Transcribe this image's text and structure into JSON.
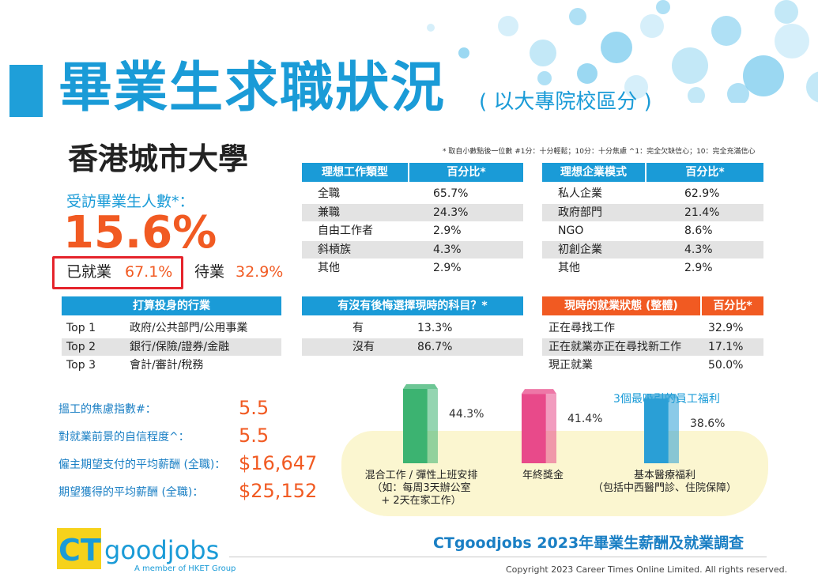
{
  "header": {
    "title": "畢業生求職狀況",
    "subtitle": "( 以大專院校區分 )",
    "footnote": "* 取自小數點後一位數   #1分：十分輕鬆；10分：十分焦慮   ^1：完全欠缺信心；10：完全充滿信心"
  },
  "university": "香港城市大學",
  "respondents": {
    "label": "受訪畢業生人數*：",
    "value": "15.6%"
  },
  "employment": {
    "employed_label": "已就業",
    "employed_value": "67.1%",
    "waiting_label": "待業",
    "waiting_value": "32.9%"
  },
  "ideal_job": {
    "header_type": "理想工作類型",
    "header_pct": "百分比*",
    "rows": [
      {
        "label": "全職",
        "value": "65.7%"
      },
      {
        "label": "兼職",
        "value": "24.3%"
      },
      {
        "label": "自由工作者",
        "value": "2.9%"
      },
      {
        "label": "斜槓族",
        "value": "4.3%"
      },
      {
        "label": "其他",
        "value": "2.9%"
      }
    ]
  },
  "ideal_company": {
    "header_type": "理想企業模式",
    "header_pct": "百分比*",
    "rows": [
      {
        "label": "私人企業",
        "value": "62.9%"
      },
      {
        "label": "政府部門",
        "value": "21.4%"
      },
      {
        "label": "NGO",
        "value": "8.6%"
      },
      {
        "label": "初創企業",
        "value": "4.3%"
      },
      {
        "label": "其他",
        "value": "2.9%"
      }
    ]
  },
  "industries": {
    "header": "打算投身的行業",
    "rows": [
      {
        "rank": "Top 1",
        "label": "政府/公共部門/公用事業"
      },
      {
        "rank": "Top 2",
        "label": "銀行/保險/證券/金融"
      },
      {
        "rank": "Top 3",
        "label": "會計/審計/稅務"
      }
    ]
  },
  "regret": {
    "header": "有沒有後悔選擇現時的科目？*",
    "rows": [
      {
        "label": "有",
        "value": "13.3%"
      },
      {
        "label": "沒有",
        "value": "86.7%"
      }
    ]
  },
  "status": {
    "header": "現時的就業狀態 (整體)",
    "header_pct": "百分比*",
    "rows": [
      {
        "label": "正在尋找工作",
        "value": "32.9%"
      },
      {
        "label": "正在就業亦正在尋找新工作",
        "value": "17.1%"
      },
      {
        "label": "現正就業",
        "value": "50.0%"
      }
    ]
  },
  "metrics": [
    {
      "label": "搵工的焦慮指數#：",
      "value": "5.5"
    },
    {
      "label": "對就業前景的自信程度^：",
      "value": "5.5"
    },
    {
      "label": "僱主期望支付的平均薪酬 (全職)：",
      "value": "$16,647"
    },
    {
      "label": "期望獲得的平均薪酬 (全職)：",
      "value": "$25,152"
    }
  ],
  "chart_data": {
    "type": "bar",
    "title": "3個最吸引的員工福利",
    "categories": [
      "混合工作 / 彈性上班安排",
      "年終獎金",
      "基本醫療福利"
    ],
    "category_notes": [
      "（如：每周3天辦公室\n+ 2天在家工作）",
      "",
      "（包括中西醫門診、住院保障）"
    ],
    "values": [
      44.3,
      41.4,
      38.6
    ],
    "value_labels": [
      "44.3%",
      "41.4%",
      "38.6%"
    ],
    "colors": [
      "#3cb371",
      "#e84a8a",
      "#2a9fd6"
    ]
  },
  "footer": {
    "brand_ct": "CT",
    "brand_rest": "goodjobs",
    "brand_sub": "A member of HKET Group",
    "survey_title": "CTgoodjobs 2023年畢業生薪酬及就業調查",
    "copyright": "Copyright 2023 Career Times Online Limited. All rights reserved."
  }
}
